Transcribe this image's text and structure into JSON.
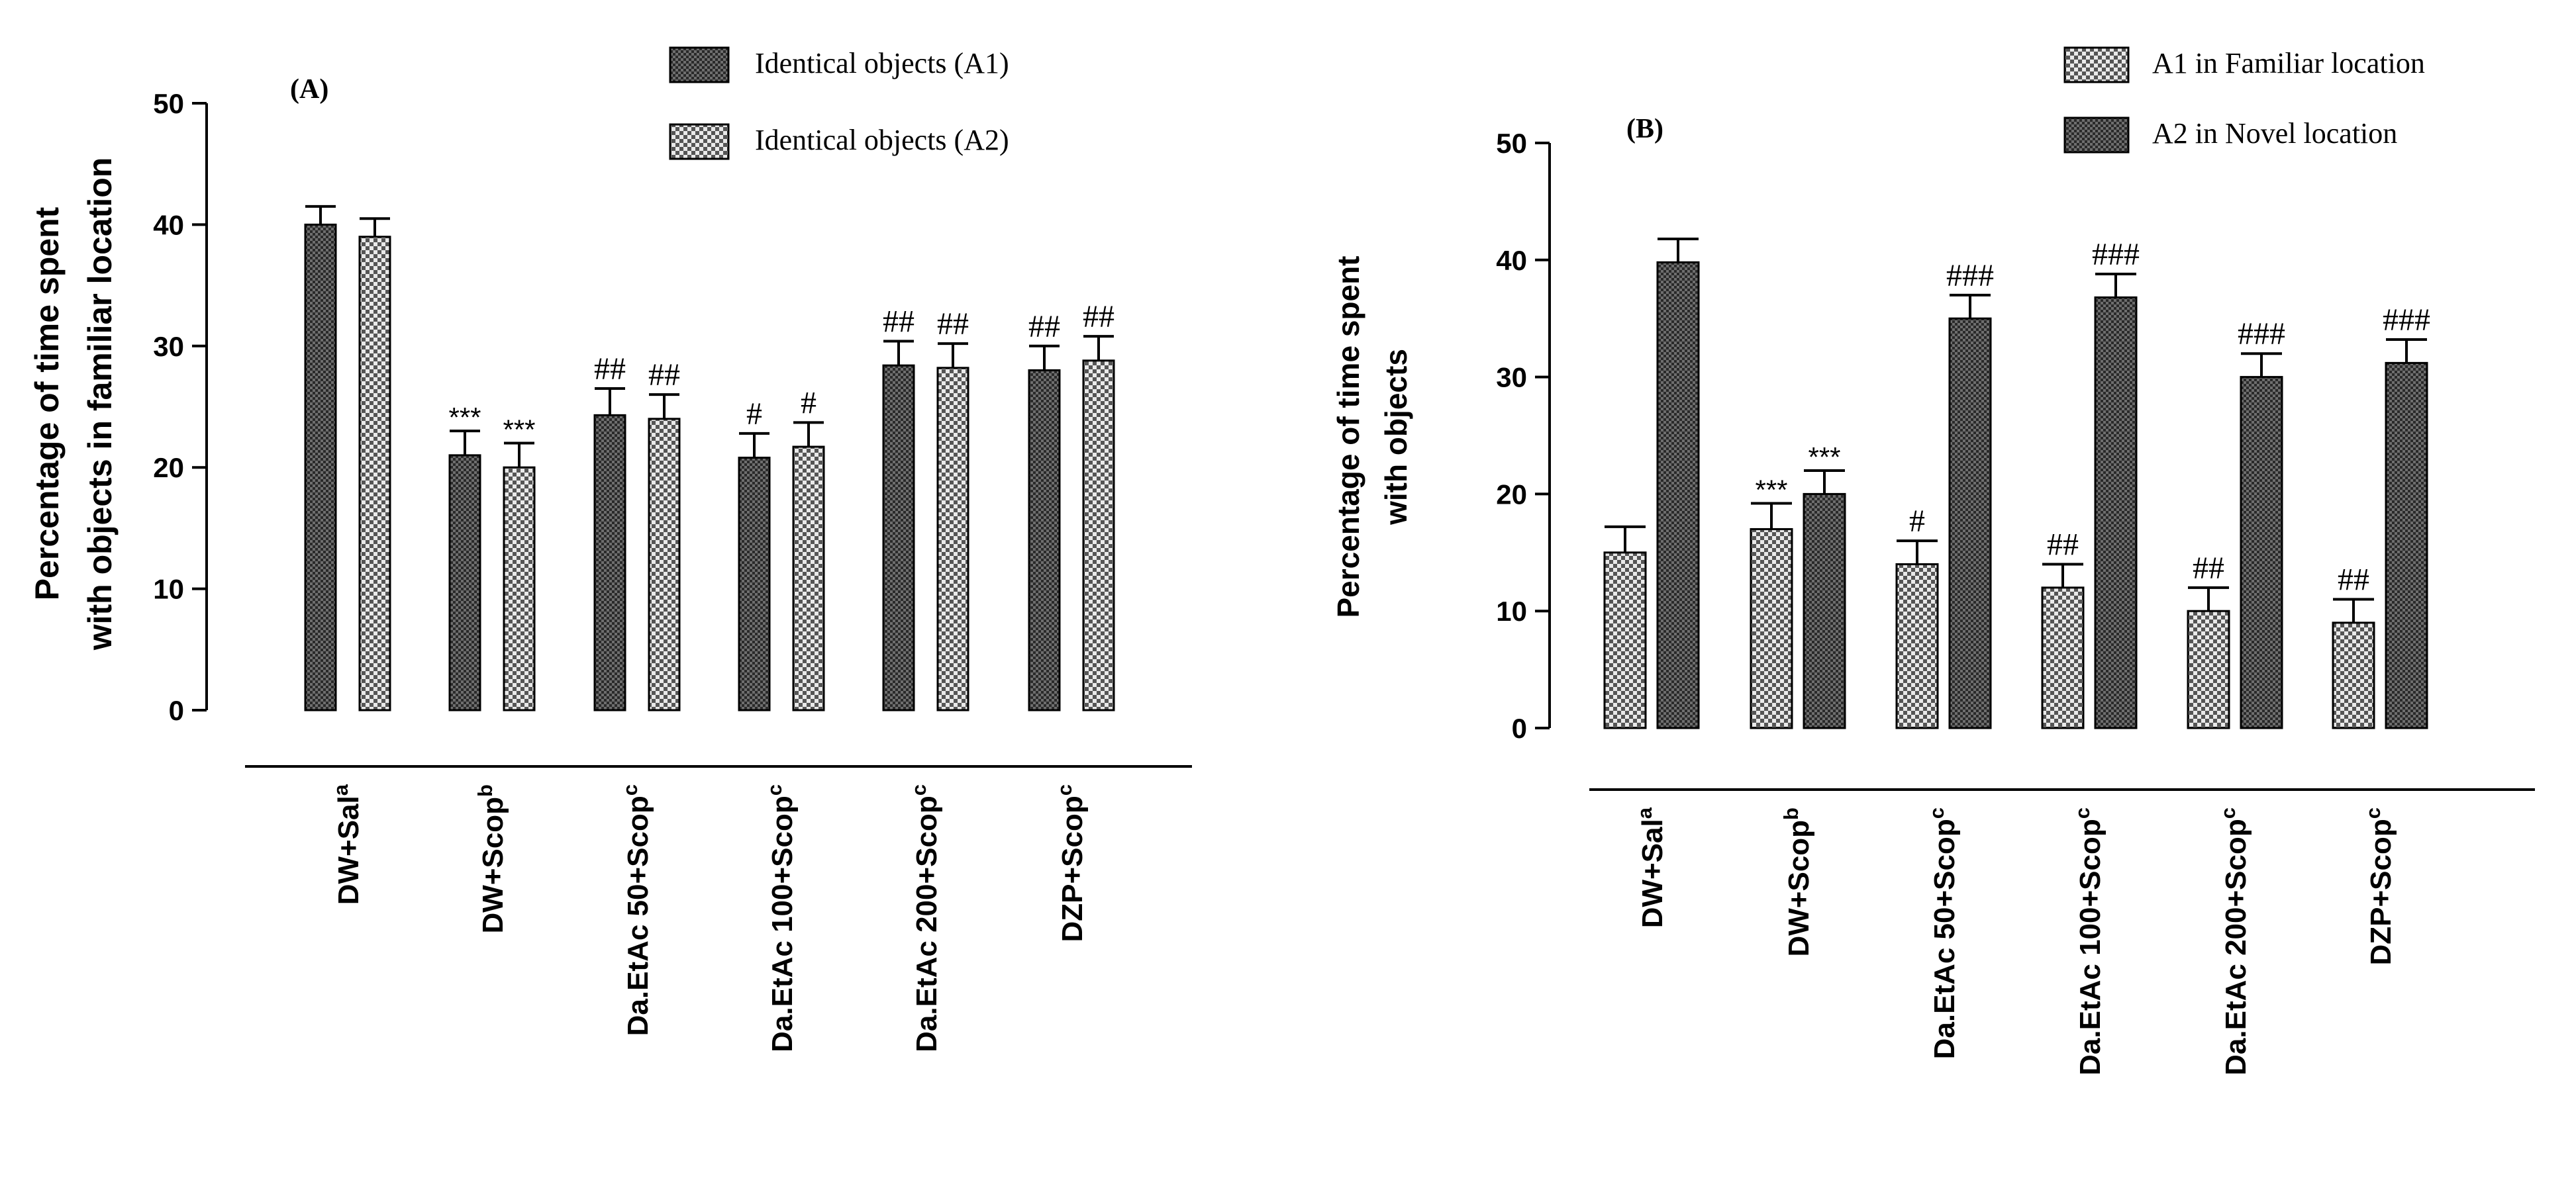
{
  "chart_data": [
    {
      "type": "bar",
      "panel_label": "(A)",
      "ylabel_lines": [
        "Percentage of time spent",
        "with objects in familiar location"
      ],
      "ylim": [
        0,
        50
      ],
      "yticks": [
        "0",
        "10",
        "20",
        "30",
        "40",
        "50"
      ],
      "categories": [
        {
          "main": "DW+Sal",
          "sup": "a"
        },
        {
          "main": "DW+Scop",
          "sup": "b"
        },
        {
          "main": "Da.EtAc 50+Scop",
          "sup": "c"
        },
        {
          "main": "Da.EtAc 100+Scop",
          "sup": "c"
        },
        {
          "main": "Da.EtAc 200+Scop",
          "sup": "c"
        },
        {
          "main": "DZP+Scop",
          "sup": "c"
        }
      ],
      "series": [
        {
          "name": "Identical objects (A1)",
          "pattern": "dense",
          "values": [
            40,
            21,
            24.3,
            20.8,
            28.4,
            28
          ],
          "errors": [
            1.5,
            2,
            2.2,
            2,
            2,
            2
          ],
          "annotations": [
            "",
            "***",
            "##",
            "#",
            "##",
            "##"
          ]
        },
        {
          "name": "Identical objects (A2)",
          "pattern": "checker",
          "values": [
            39,
            20,
            24,
            21.7,
            28.2,
            28.8
          ],
          "errors": [
            1.5,
            2,
            2,
            2,
            2,
            2
          ],
          "annotations": [
            "",
            "***",
            "##",
            "#",
            "##",
            "##"
          ]
        }
      ]
    },
    {
      "type": "bar",
      "panel_label": "(B)",
      "ylabel_lines": [
        "Percentage of time spent",
        "with objects"
      ],
      "ylim": [
        0,
        50
      ],
      "yticks": [
        "0",
        "10",
        "20",
        "30",
        "40",
        "50"
      ],
      "categories": [
        {
          "main": "DW+Sal",
          "sup": "a"
        },
        {
          "main": "DW+Scop",
          "sup": "b"
        },
        {
          "main": "Da.EtAc 50+Scop",
          "sup": "c"
        },
        {
          "main": "Da.EtAc 100+Scop",
          "sup": "c"
        },
        {
          "main": "Da.EtAc 200+Scop",
          "sup": "c"
        },
        {
          "main": "DZP+Scop",
          "sup": "c"
        }
      ],
      "series": [
        {
          "name": "A1 in Familiar location",
          "pattern": "checker",
          "values": [
            15,
            17,
            14,
            12,
            10,
            9
          ],
          "errors": [
            2.2,
            2.2,
            2,
            2,
            2,
            2
          ],
          "annotations": [
            "",
            "***",
            "#",
            "##",
            "##",
            "##"
          ]
        },
        {
          "name": "A2 in Novel location",
          "pattern": "dense",
          "values": [
            39.8,
            20,
            35,
            36.8,
            30,
            31.2
          ],
          "errors": [
            2,
            2,
            2,
            2,
            2,
            2
          ],
          "annotations": [
            "",
            "***",
            "###",
            "###",
            "###",
            "###"
          ]
        }
      ]
    }
  ]
}
